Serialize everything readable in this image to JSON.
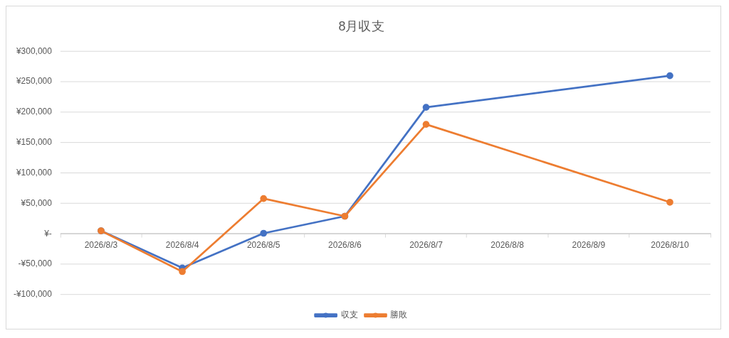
{
  "chart_data": {
    "type": "line",
    "title": "8月収支",
    "categories": [
      "2026/8/3",
      "2026/8/4",
      "2026/8/5",
      "2026/8/6",
      "2026/8/7",
      "2026/8/8",
      "2026/8/9",
      "2026/8/10"
    ],
    "series": [
      {
        "name": "収支",
        "color": "#4472c4",
        "values": [
          5000,
          -56000,
          1000,
          29000,
          208000,
          null,
          null,
          260000
        ]
      },
      {
        "name": "勝敗",
        "color": "#ed7d31",
        "values": [
          5000,
          -62000,
          58000,
          29000,
          180000,
          null,
          null,
          52000
        ]
      }
    ],
    "ylim": [
      -100000,
      300000
    ],
    "yticks": [
      {
        "value": -100000,
        "label": "-¥100,000"
      },
      {
        "value": -50000,
        "label": "-¥50,000"
      },
      {
        "value": 0,
        "label": "¥-"
      },
      {
        "value": 50000,
        "label": "¥50,000"
      },
      {
        "value": 100000,
        "label": "¥100,000"
      },
      {
        "value": 150000,
        "label": "¥150,000"
      },
      {
        "value": 200000,
        "label": "¥200,000"
      },
      {
        "value": 250000,
        "label": "¥250,000"
      },
      {
        "value": 300000,
        "label": "¥300,000"
      }
    ],
    "grid": "y",
    "legend": "bottom",
    "marker": "circle",
    "line_style": "solid"
  }
}
